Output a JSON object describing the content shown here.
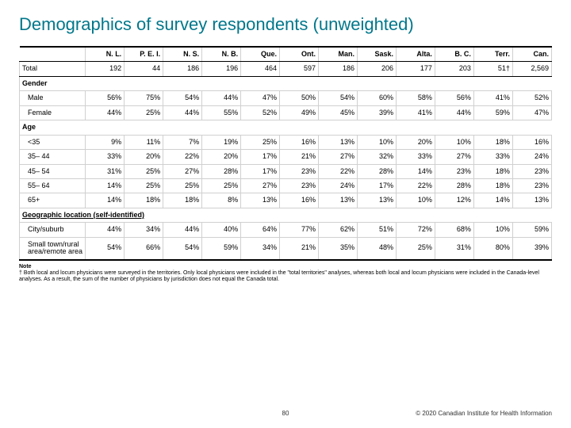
{
  "title": "Demographics of survey respondents (unweighted)",
  "columns": [
    "N. L.",
    "P. E. I.",
    "N. S.",
    "N. B.",
    "Que.",
    "Ont.",
    "Man.",
    "Sask.",
    "Alta.",
    "B. C.",
    "Terr.",
    "Can."
  ],
  "total_label": "Total",
  "total_values": [
    "192",
    "44",
    "186",
    "196",
    "464",
    "597",
    "186",
    "206",
    "177",
    "203",
    "51†",
    "2,569"
  ],
  "sections": [
    {
      "label": "Gender",
      "underline": false,
      "rows": [
        {
          "label": "Male",
          "values": [
            "56%",
            "75%",
            "54%",
            "44%",
            "47%",
            "50%",
            "54%",
            "60%",
            "58%",
            "56%",
            "41%",
            "52%"
          ]
        },
        {
          "label": "Female",
          "values": [
            "44%",
            "25%",
            "44%",
            "55%",
            "52%",
            "49%",
            "45%",
            "39%",
            "41%",
            "44%",
            "59%",
            "47%"
          ]
        }
      ]
    },
    {
      "label": "Age",
      "underline": false,
      "rows": [
        {
          "label": "<35",
          "values": [
            "9%",
            "11%",
            "7%",
            "19%",
            "25%",
            "16%",
            "13%",
            "10%",
            "20%",
            "10%",
            "18%",
            "16%"
          ]
        },
        {
          "label": "35– 44",
          "values": [
            "33%",
            "20%",
            "22%",
            "20%",
            "17%",
            "21%",
            "27%",
            "32%",
            "33%",
            "27%",
            "33%",
            "24%"
          ]
        },
        {
          "label": "45– 54",
          "values": [
            "31%",
            "25%",
            "27%",
            "28%",
            "17%",
            "23%",
            "22%",
            "28%",
            "14%",
            "23%",
            "18%",
            "23%"
          ]
        },
        {
          "label": "55– 64",
          "values": [
            "14%",
            "25%",
            "25%",
            "25%",
            "27%",
            "23%",
            "24%",
            "17%",
            "22%",
            "28%",
            "18%",
            "23%"
          ]
        },
        {
          "label": "65+",
          "values": [
            "14%",
            "18%",
            "18%",
            "8%",
            "13%",
            "16%",
            "13%",
            "13%",
            "10%",
            "12%",
            "14%",
            "13%"
          ]
        }
      ]
    },
    {
      "label": "Geographic location (self-identified)",
      "underline": true,
      "rows": [
        {
          "label": "City/suburb",
          "values": [
            "44%",
            "34%",
            "44%",
            "40%",
            "64%",
            "77%",
            "62%",
            "51%",
            "72%",
            "68%",
            "10%",
            "59%"
          ]
        },
        {
          "label": "Small town/rural area/remote area",
          "values": [
            "54%",
            "66%",
            "54%",
            "59%",
            "34%",
            "21%",
            "35%",
            "48%",
            "25%",
            "31%",
            "80%",
            "39%"
          ]
        }
      ]
    }
  ],
  "note_header": "Note",
  "note_body": "† Both local and locum physicians were surveyed in the territories. Only local physicians were included in the \"total territories\" analyses, whereas both local and locum physicians were included in the Canada-level analyses. As a result, the sum of the number of physicians by jurisdiction does not equal the Canada total.",
  "page_number": "80",
  "copyright": "© 2020 Canadian Institute for Health Information"
}
